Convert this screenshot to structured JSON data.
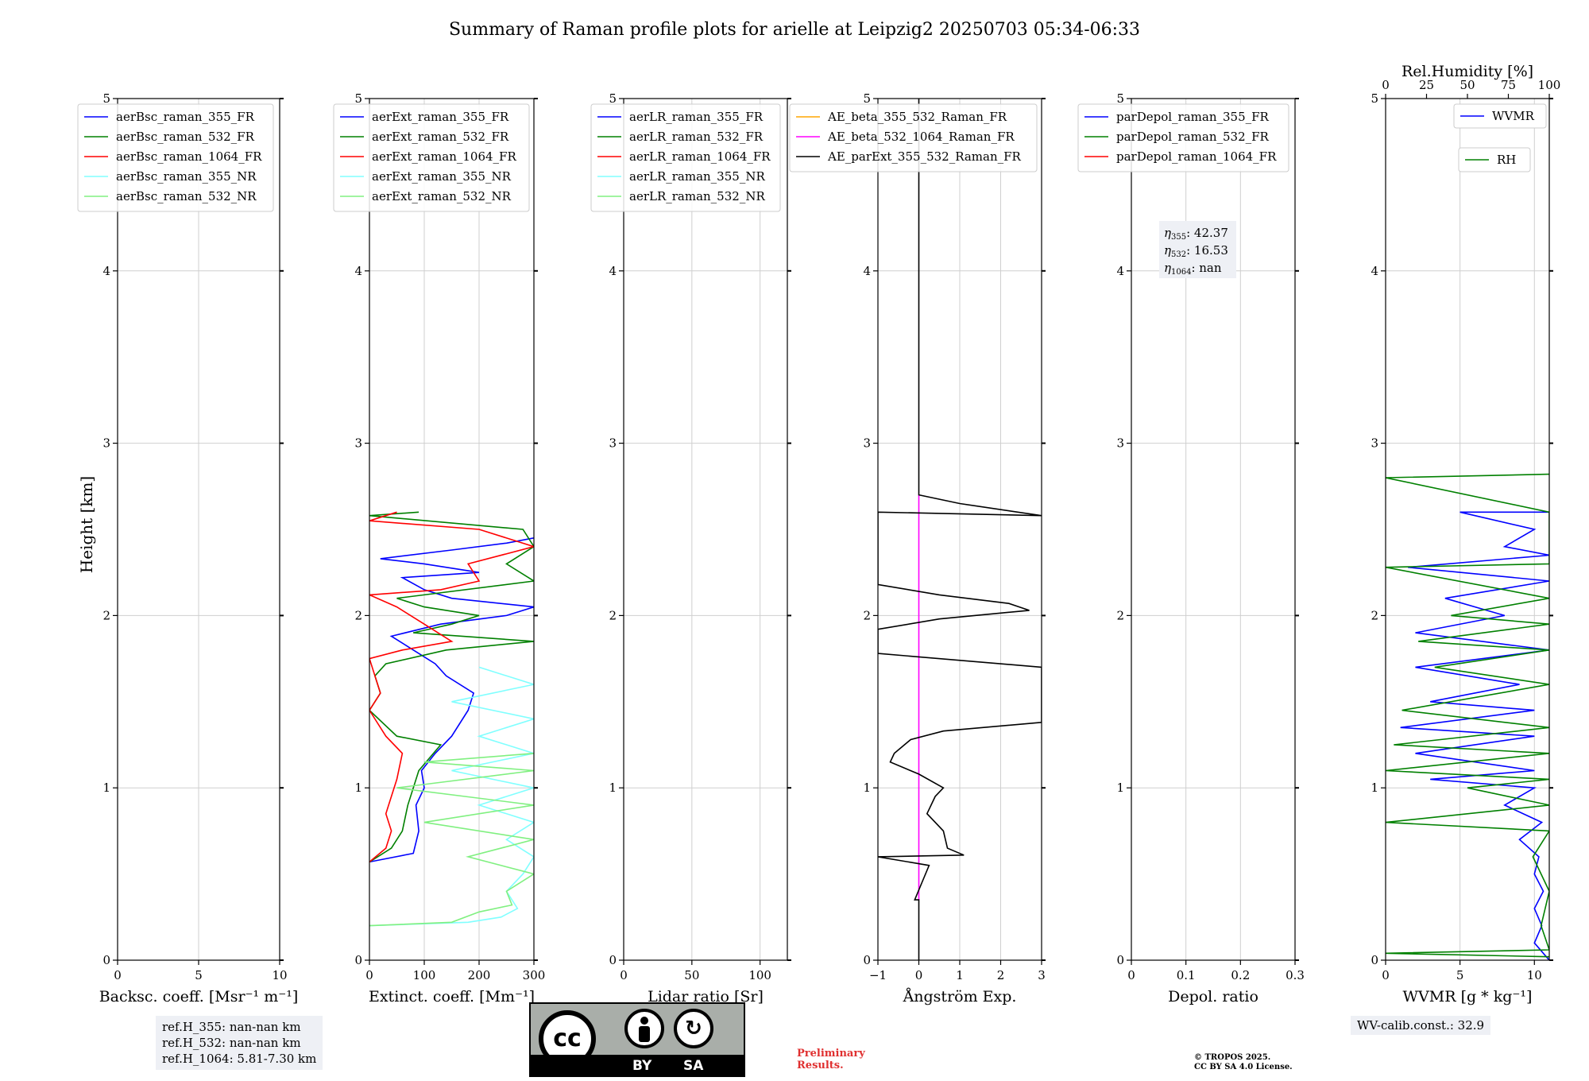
{
  "title": "Summary of Raman profile plots for arielle at Leipzig2 20250703 05:34-06:33",
  "ylabel": "Height [km]",
  "colors": {
    "blue": "#0000ff",
    "green": "#008000",
    "red": "#ff0000",
    "cyan": "#80ffff",
    "lightgreen": "#80f080",
    "orange": "#ffa500",
    "magenta": "#ff00ff",
    "black": "#000000"
  },
  "chart_data": [
    {
      "type": "line",
      "xlabel": "Backsc. coeff. [Msr⁻¹ m⁻¹]",
      "xlim": [
        0,
        10
      ],
      "xticks": [
        0,
        5,
        10
      ],
      "ylim": [
        0,
        5
      ],
      "yticks": [
        0,
        1,
        2,
        3,
        4,
        5
      ],
      "grid": true,
      "legend": "upper-left",
      "series": [
        {
          "name": "aerBsc_raman_355_FR",
          "color": "#0000ff",
          "points": []
        },
        {
          "name": "aerBsc_raman_532_FR",
          "color": "#008000",
          "points": []
        },
        {
          "name": "aerBsc_raman_1064_FR",
          "color": "#ff0000",
          "points": []
        },
        {
          "name": "aerBsc_raman_355_NR",
          "color": "#80ffff",
          "points": []
        },
        {
          "name": "aerBsc_raman_532_NR",
          "color": "#80f080",
          "points": []
        }
      ]
    },
    {
      "type": "line",
      "xlabel": "Extinct. coeff. [Mm⁻¹]",
      "xlim": [
        0,
        300
      ],
      "xticks": [
        0,
        100,
        200,
        300
      ],
      "ylim": [
        0,
        5
      ],
      "yticks": [
        0,
        1,
        2,
        3,
        4,
        5
      ],
      "grid": true,
      "legend": "upper-left",
      "series": [
        {
          "name": "aerExt_raman_355_FR",
          "color": "#0000ff",
          "points": [
            [
              0,
              0.57
            ],
            [
              80,
              0.62
            ],
            [
              90,
              0.75
            ],
            [
              85,
              0.9
            ],
            [
              100,
              1.0
            ],
            [
              95,
              1.1
            ],
            [
              120,
              1.2
            ],
            [
              150,
              1.3
            ],
            [
              180,
              1.45
            ],
            [
              190,
              1.55
            ],
            [
              140,
              1.65
            ],
            [
              120,
              1.72
            ],
            [
              70,
              1.82
            ],
            [
              40,
              1.88
            ],
            [
              130,
              1.95
            ],
            [
              250,
              2.0
            ],
            [
              300,
              2.05
            ],
            [
              150,
              2.1
            ],
            [
              100,
              2.15
            ],
            [
              60,
              2.22
            ],
            [
              200,
              2.25
            ],
            [
              100,
              2.3
            ],
            [
              20,
              2.33
            ],
            [
              150,
              2.38
            ],
            [
              250,
              2.42
            ],
            [
              300,
              2.45
            ]
          ]
        },
        {
          "name": "aerExt_raman_532_FR",
          "color": "#008000",
          "points": [
            [
              0,
              0.57
            ],
            [
              40,
              0.65
            ],
            [
              60,
              0.75
            ],
            [
              70,
              0.9
            ],
            [
              80,
              1.0
            ],
            [
              90,
              1.1
            ],
            [
              130,
              1.25
            ],
            [
              50,
              1.3
            ],
            [
              0,
              1.45
            ],
            [
              20,
              1.55
            ],
            [
              10,
              1.65
            ],
            [
              30,
              1.72
            ],
            [
              140,
              1.8
            ],
            [
              300,
              1.85
            ],
            [
              80,
              1.9
            ],
            [
              150,
              1.95
            ],
            [
              200,
              2.0
            ],
            [
              100,
              2.05
            ],
            [
              50,
              2.1
            ],
            [
              300,
              2.2
            ],
            [
              250,
              2.3
            ],
            [
              300,
              2.4
            ],
            [
              280,
              2.5
            ],
            [
              0,
              2.58
            ],
            [
              90,
              2.6
            ]
          ]
        },
        {
          "name": "aerExt_raman_1064_FR",
          "color": "#ff0000",
          "points": [
            [
              0,
              0.57
            ],
            [
              30,
              0.65
            ],
            [
              40,
              0.75
            ],
            [
              30,
              0.85
            ],
            [
              40,
              0.95
            ],
            [
              50,
              1.05
            ],
            [
              60,
              1.2
            ],
            [
              30,
              1.3
            ],
            [
              10,
              1.4
            ],
            [
              0,
              1.45
            ],
            [
              20,
              1.55
            ],
            [
              10,
              1.65
            ],
            [
              0,
              1.75
            ],
            [
              60,
              1.8
            ],
            [
              150,
              1.85
            ],
            [
              100,
              1.95
            ],
            [
              50,
              2.05
            ],
            [
              0,
              2.12
            ],
            [
              130,
              2.15
            ],
            [
              200,
              2.2
            ],
            [
              180,
              2.3
            ],
            [
              300,
              2.4
            ],
            [
              200,
              2.5
            ],
            [
              0,
              2.55
            ],
            [
              50,
              2.6
            ]
          ]
        },
        {
          "name": "aerExt_raman_355_NR",
          "color": "#80ffff",
          "points": [
            [
              0,
              0.2
            ],
            [
              180,
              0.22
            ],
            [
              240,
              0.25
            ],
            [
              270,
              0.3
            ],
            [
              250,
              0.4
            ],
            [
              280,
              0.5
            ],
            [
              300,
              0.6
            ],
            [
              250,
              0.7
            ],
            [
              300,
              0.8
            ],
            [
              200,
              0.9
            ],
            [
              300,
              1.0
            ],
            [
              150,
              1.1
            ],
            [
              300,
              1.2
            ],
            [
              200,
              1.3
            ],
            [
              300,
              1.4
            ],
            [
              150,
              1.5
            ],
            [
              300,
              1.6
            ],
            [
              200,
              1.7
            ]
          ]
        },
        {
          "name": "aerExt_raman_532_NR",
          "color": "#80f080",
          "points": [
            [
              0,
              0.2
            ],
            [
              150,
              0.22
            ],
            [
              200,
              0.28
            ],
            [
              260,
              0.32
            ],
            [
              250,
              0.4
            ],
            [
              300,
              0.5
            ],
            [
              180,
              0.6
            ],
            [
              300,
              0.7
            ],
            [
              100,
              0.8
            ],
            [
              300,
              0.9
            ],
            [
              50,
              1.0
            ],
            [
              300,
              1.1
            ],
            [
              100,
              1.15
            ],
            [
              300,
              1.2
            ]
          ]
        }
      ]
    },
    {
      "type": "line",
      "xlabel": "Lidar ratio [Sr]",
      "xlim": [
        0,
        120
      ],
      "xticks": [
        0,
        50,
        100
      ],
      "ylim": [
        0,
        5
      ],
      "yticks": [
        0,
        1,
        2,
        3,
        4,
        5
      ],
      "grid": true,
      "legend": "upper-left",
      "series": [
        {
          "name": "aerLR_raman_355_FR",
          "color": "#0000ff",
          "points": []
        },
        {
          "name": "aerLR_raman_532_FR",
          "color": "#008000",
          "points": []
        },
        {
          "name": "aerLR_raman_1064_FR",
          "color": "#ff0000",
          "points": []
        },
        {
          "name": "aerLR_raman_355_NR",
          "color": "#80ffff",
          "points": []
        },
        {
          "name": "aerLR_raman_532_NR",
          "color": "#80f080",
          "points": []
        }
      ]
    },
    {
      "type": "line",
      "xlabel": "Ångström Exp.",
      "xlim": [
        -1,
        3
      ],
      "xticks": [
        -1,
        0,
        1,
        2,
        3
      ],
      "ylim": [
        0,
        5
      ],
      "yticks": [
        0,
        1,
        2,
        3,
        4,
        5
      ],
      "grid": true,
      "legend": "upper-right",
      "series": [
        {
          "name": "AE_beta_355_532_Raman_FR",
          "color": "#ffa500",
          "points": []
        },
        {
          "name": "AE_beta_532_1064_Raman_FR",
          "color": "#ff00ff",
          "points": [
            [
              0,
              0.35
            ],
            [
              0,
              2.7
            ]
          ]
        },
        {
          "name": "AE_parExt_355_532_Raman_FR",
          "color": "#000000",
          "points": [
            [
              0,
              0
            ],
            [
              0,
              0.35
            ],
            [
              -0.1,
              0.35
            ],
            [
              0.25,
              0.55
            ],
            [
              -1,
              0.6
            ],
            [
              1.1,
              0.61
            ],
            [
              0.7,
              0.65
            ],
            [
              0.6,
              0.75
            ],
            [
              0.2,
              0.85
            ],
            [
              0.4,
              0.95
            ],
            [
              0.6,
              1.0
            ],
            [
              0,
              1.08
            ],
            [
              -0.7,
              1.15
            ],
            [
              -0.6,
              1.2
            ],
            [
              -0.2,
              1.28
            ],
            [
              0.6,
              1.33
            ],
            [
              3,
              1.38
            ],
            [
              3,
              1.7
            ],
            [
              -1,
              1.78
            ],
            [
              -1,
              1.92
            ],
            [
              0.5,
              1.98
            ],
            [
              2.7,
              2.03
            ],
            [
              2.2,
              2.07
            ],
            [
              0.5,
              2.12
            ],
            [
              -1,
              2.18
            ],
            [
              -1,
              2.6
            ],
            [
              3,
              2.58
            ],
            [
              1,
              2.65
            ],
            [
              0,
              2.7
            ],
            [
              0,
              5
            ]
          ]
        }
      ]
    },
    {
      "type": "line",
      "xlabel": "Depol. ratio",
      "xlim": [
        0,
        0.3
      ],
      "xticks": [
        0.0,
        0.1,
        0.2,
        0.3
      ],
      "ylim": [
        0,
        5
      ],
      "yticks": [
        0,
        1,
        2,
        3,
        4,
        5
      ],
      "grid": true,
      "legend": "upper-left",
      "annotation": [
        {
          "sym": "η",
          "sub": "355",
          "text": ": 42.37"
        },
        {
          "sym": "η",
          "sub": "532",
          "text": ": 16.53"
        },
        {
          "sym": "η",
          "sub": "1064",
          "text": ": nan"
        }
      ],
      "series": [
        {
          "name": "parDepol_raman_355_FR",
          "color": "#0000ff",
          "points": []
        },
        {
          "name": "parDepol_raman_532_FR",
          "color": "#008000",
          "points": []
        },
        {
          "name": "parDepol_raman_1064_FR",
          "color": "#ff0000",
          "points": []
        }
      ]
    },
    {
      "type": "line",
      "xlabel": "WVMR [g * kg⁻¹]",
      "xlim": [
        0,
        11
      ],
      "xticks": [
        0,
        5,
        10
      ],
      "ylim": [
        0,
        5
      ],
      "yticks": [
        0,
        1,
        2,
        3,
        4,
        5
      ],
      "grid": true,
      "top_axis": {
        "label": "Rel.Humidity [%]",
        "lim": [
          0,
          100
        ],
        "ticks": [
          0,
          25,
          50,
          75,
          100
        ]
      },
      "legend": "top-right",
      "series": [
        {
          "name": "WVMR",
          "color": "#0000ff",
          "axis": "bottom",
          "points": [
            [
              11,
              0.0
            ],
            [
              10,
              0.1
            ],
            [
              10.5,
              0.2
            ],
            [
              10,
              0.3
            ],
            [
              10.6,
              0.4
            ],
            [
              10,
              0.5
            ],
            [
              10.3,
              0.6
            ],
            [
              9,
              0.7
            ],
            [
              10.5,
              0.8
            ],
            [
              8,
              0.9
            ],
            [
              10,
              1.0
            ],
            [
              3,
              1.05
            ],
            [
              10,
              1.1
            ],
            [
              2,
              1.2
            ],
            [
              10,
              1.3
            ],
            [
              1,
              1.35
            ],
            [
              10,
              1.45
            ],
            [
              3,
              1.5
            ],
            [
              9,
              1.6
            ],
            [
              2,
              1.7
            ],
            [
              11,
              1.8
            ],
            [
              2,
              1.9
            ],
            [
              8,
              2.0
            ],
            [
              4,
              2.1
            ],
            [
              11,
              2.2
            ],
            [
              1.5,
              2.28
            ],
            [
              11,
              2.35
            ],
            [
              8,
              2.4
            ],
            [
              10,
              2.5
            ],
            [
              5,
              2.6
            ],
            [
              11,
              2.6
            ]
          ]
        },
        {
          "name": "RH",
          "color": "#008000",
          "axis": "top",
          "points": [
            [
              100,
              0.02
            ],
            [
              0,
              0.04
            ],
            [
              100,
              0.06
            ],
            [
              95,
              0.2
            ],
            [
              100,
              0.4
            ],
            [
              90,
              0.6
            ],
            [
              100,
              0.75
            ],
            [
              0,
              0.8
            ],
            [
              100,
              0.9
            ],
            [
              50,
              1.0
            ],
            [
              100,
              1.05
            ],
            [
              0,
              1.1
            ],
            [
              100,
              1.2
            ],
            [
              5,
              1.25
            ],
            [
              100,
              1.35
            ],
            [
              10,
              1.45
            ],
            [
              100,
              1.6
            ],
            [
              30,
              1.7
            ],
            [
              100,
              1.8
            ],
            [
              20,
              1.85
            ],
            [
              100,
              1.95
            ],
            [
              40,
              2.0
            ],
            [
              100,
              2.1
            ],
            [
              0,
              2.28
            ],
            [
              100,
              2.3
            ],
            [
              100,
              2.6
            ],
            [
              0,
              2.8
            ],
            [
              100,
              2.82
            ]
          ]
        }
      ]
    }
  ],
  "footer": {
    "ref_lines": [
      "ref.H_355: nan-nan km",
      "ref.H_532: nan-nan km",
      "ref.H_1064: 5.81-7.30 km"
    ],
    "wv_calib": "WV-calib.const.: 32.9",
    "preliminary": [
      "Preliminary",
      "Results."
    ],
    "copyright": [
      "© TROPOS 2025.",
      "CC BY SA 4.0 License."
    ],
    "license_badge": {
      "main": "cc",
      "by": "BY",
      "sa": "SA"
    }
  }
}
